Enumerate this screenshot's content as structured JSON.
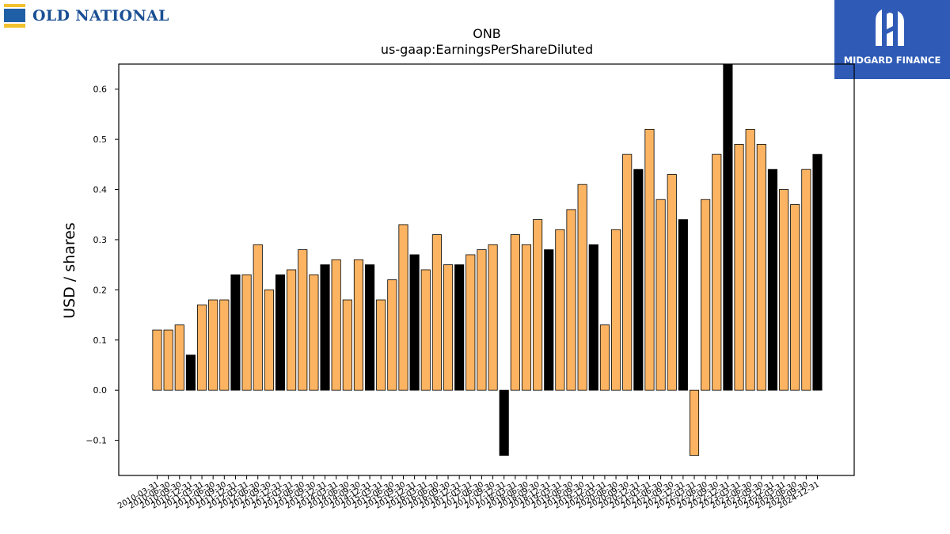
{
  "brand": {
    "name": "OLD NATIONAL"
  },
  "watermark": {
    "text": "MIDGARD FINANCE"
  },
  "colors": {
    "positive": "#fdb462",
    "highlight": "#000000",
    "edge": "#000000"
  },
  "chart_data": {
    "type": "bar",
    "title": "ONB",
    "subtitle": "us-gaap:EarningsPerShareDiluted",
    "ylabel": "USD / shares",
    "xlabel": "",
    "ylim": [
      -0.17,
      0.65
    ],
    "yticks": [
      -0.1,
      0.0,
      0.1,
      0.2,
      0.3,
      0.4,
      0.5,
      0.6
    ],
    "ytick_labels": [
      "−0.1",
      "0.0",
      "0.1",
      "0.2",
      "0.3",
      "0.4",
      "0.5",
      "0.6"
    ],
    "grid": false,
    "legend": "none",
    "categories": [
      "2010-03-31",
      "2010-06-30",
      "2010-09-30",
      "2010-12-31",
      "2011-03-31",
      "2011-06-30",
      "2011-09-30",
      "2011-12-31",
      "2012-03-31",
      "2012-06-30",
      "2012-09-30",
      "2012-12-31",
      "2013-03-31",
      "2013-06-30",
      "2013-09-30",
      "2013-12-31",
      "2014-03-31",
      "2014-06-30",
      "2014-09-30",
      "2014-12-31",
      "2015-03-31",
      "2015-06-30",
      "2015-09-30",
      "2015-12-31",
      "2016-03-31",
      "2016-06-30",
      "2016-09-30",
      "2016-12-31",
      "2017-03-31",
      "2017-06-30",
      "2017-09-30",
      "2017-12-31",
      "2018-03-31",
      "2018-06-30",
      "2018-09-30",
      "2018-12-31",
      "2019-03-31",
      "2019-06-30",
      "2019-09-30",
      "2019-12-31",
      "2020-03-31",
      "2020-06-30",
      "2020-09-30",
      "2020-12-31",
      "2021-03-31",
      "2021-06-30",
      "2021-09-30",
      "2021-12-31",
      "2022-03-31",
      "2022-06-30",
      "2022-09-30",
      "2022-12-31",
      "2023-03-31",
      "2023-06-30",
      "2023-09-30",
      "2023-12-31",
      "2024-03-31",
      "2024-06-30",
      "2024-09-30",
      "2024-12-31"
    ],
    "values": [
      0.12,
      0.12,
      0.13,
      0.07,
      0.17,
      0.18,
      0.18,
      0.23,
      0.23,
      0.29,
      0.2,
      0.23,
      0.24,
      0.28,
      0.23,
      0.25,
      0.26,
      0.18,
      0.26,
      0.25,
      0.18,
      0.22,
      0.33,
      0.27,
      0.24,
      0.31,
      0.25,
      0.25,
      0.27,
      0.28,
      0.29,
      -0.13,
      0.31,
      0.29,
      0.34,
      0.28,
      0.32,
      0.36,
      0.41,
      0.29,
      0.13,
      0.32,
      0.47,
      0.44,
      0.52,
      0.38,
      0.43,
      0.34,
      -0.13,
      0.38,
      0.47,
      0.65,
      0.49,
      0.52,
      0.49,
      0.44,
      0.4,
      0.37,
      0.44,
      0.47
    ],
    "highlight_indices": [
      3,
      7,
      11,
      15,
      19,
      23,
      27,
      31,
      35,
      39,
      43,
      47,
      51,
      55,
      59
    ]
  }
}
